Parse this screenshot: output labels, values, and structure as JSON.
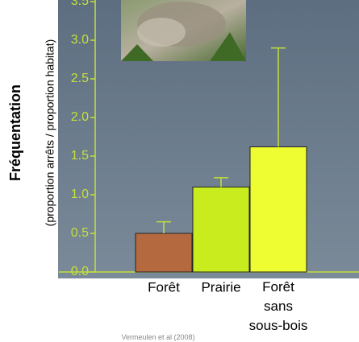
{
  "chart_data": {
    "type": "bar",
    "y_label": "Fréquentation",
    "y_sublabel": "(proportion arrêts / proportion habitat)",
    "categories": [
      "Forêt",
      "Prairie",
      "Forêt sans sous-bois"
    ],
    "values": [
      0.5,
      1.1,
      1.62
    ],
    "errors": [
      0.15,
      0.12,
      1.28
    ],
    "colors": [
      "#b5693f",
      "#c9ec1f",
      "#eefc32"
    ],
    "ylim": [
      0,
      3.5
    ],
    "yticks": [
      {
        "value": 0,
        "label": "0.0"
      },
      {
        "value": 0.5,
        "label": "0.5"
      },
      {
        "value": 1,
        "label": "1.0"
      },
      {
        "value": 1.5,
        "label": "1.5"
      },
      {
        "value": 2,
        "label": "2.0"
      },
      {
        "value": 2.5,
        "label": "2.5"
      },
      {
        "value": 3,
        "label": "3.0"
      },
      {
        "value": 3.5,
        "label": "3.5"
      }
    ],
    "source": "Vermeulen et al (2008)"
  }
}
